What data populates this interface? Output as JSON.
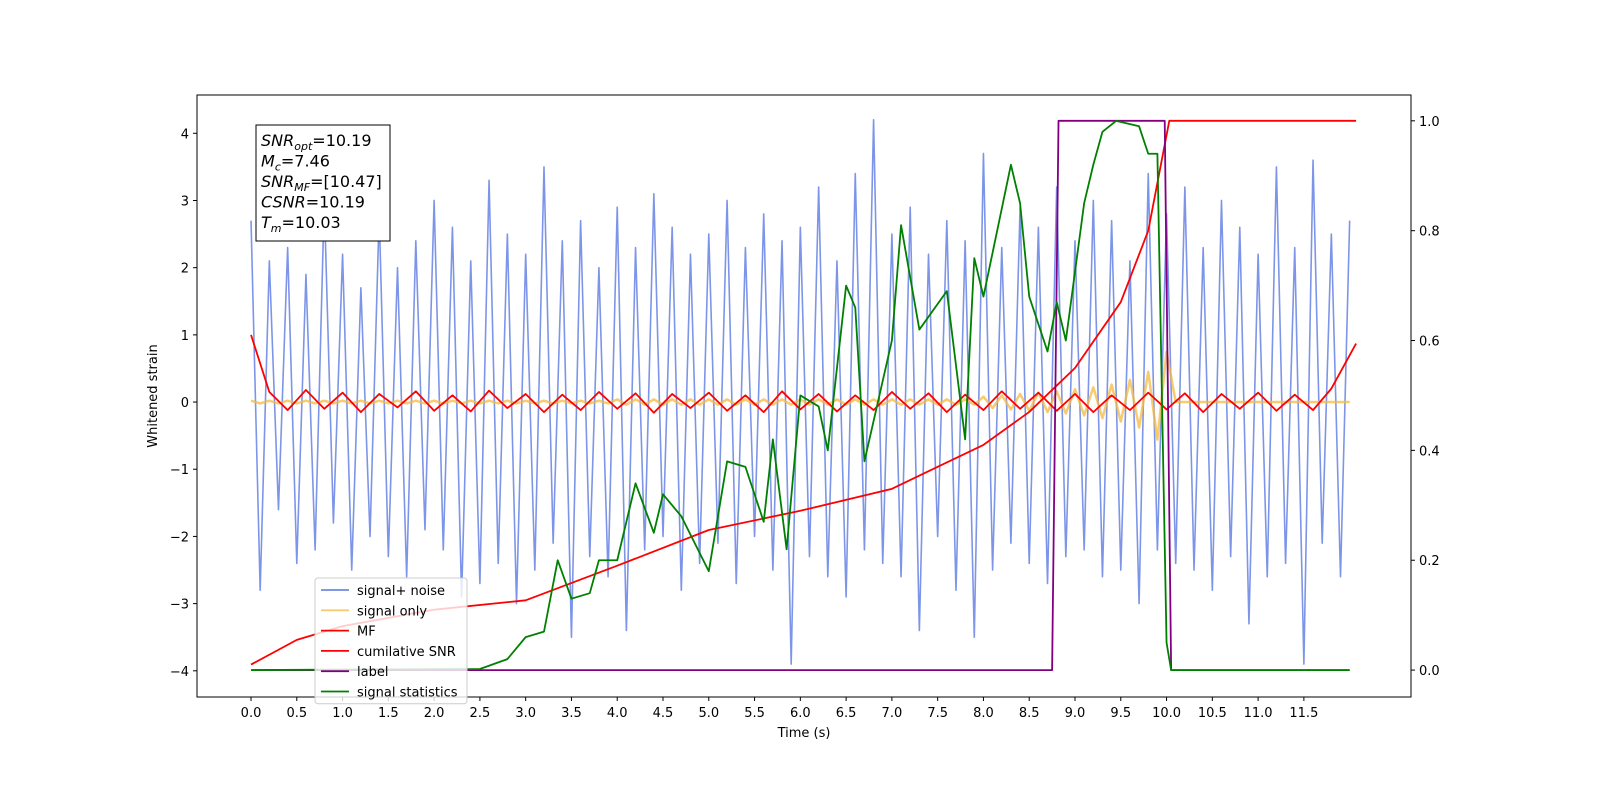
{
  "chart_data": {
    "type": "line",
    "xlabel": "Time (s)",
    "ylabel": "Whitened strain",
    "xlim": [
      -0.59,
      12.67
    ],
    "ylim": [
      -4.39,
      4.57
    ],
    "y2lim": [
      -0.049,
      1.047
    ],
    "xticks": [
      {
        "value": 0,
        "label": "0.0"
      },
      0.5,
      {
        "value": 1,
        "label": "1.0"
      },
      1.5,
      {
        "value": 2,
        "label": "2.0"
      },
      2.5,
      {
        "value": 3,
        "label": "3.0"
      },
      3.5,
      {
        "value": 4,
        "label": "4.0"
      },
      4.5,
      {
        "value": 5,
        "label": "5.0"
      },
      5.5,
      {
        "value": 6,
        "label": "6.0"
      },
      6.5,
      {
        "value": 7,
        "label": "7.0"
      },
      7.5,
      {
        "value": 8,
        "label": "8.0"
      },
      8.5,
      {
        "value": 9,
        "label": "9.0"
      },
      9.5,
      {
        "value": 10,
        "label": "10.0"
      },
      10.5,
      {
        "value": 11,
        "label": "11.0"
      },
      11.5
    ],
    "yticks": [
      {
        "value": -4,
        "label": "−4"
      },
      {
        "value": -3,
        "label": "−3"
      },
      {
        "value": -2,
        "label": "−2"
      },
      {
        "value": -1,
        "label": "−1"
      },
      0,
      1,
      2,
      3,
      4
    ],
    "y2ticks": [
      {
        "value": 0,
        "label": "0.0"
      },
      0.2,
      0.4,
      0.6,
      0.8,
      {
        "value": 1,
        "label": "1.0"
      }
    ],
    "grid": false,
    "legend": "lower left",
    "annotations": [
      {
        "symbol": "SNR",
        "subscript": "opt",
        "text": "=10.19"
      },
      {
        "symbol": "M",
        "subscript": "c",
        "text": "=7.46"
      },
      {
        "symbol": "SNR",
        "subscript": "MF",
        "text": "=[10.47]"
      },
      {
        "symbol": "CSNR",
        "subscript": "",
        "text": "=10.19"
      },
      {
        "symbol": "T",
        "subscript": "m",
        "text": "=10.03"
      }
    ],
    "x": [
      0,
      0.1,
      0.2,
      0.3,
      0.4,
      0.5,
      0.6,
      0.7,
      0.8,
      0.9,
      1,
      1.1,
      1.2,
      1.3,
      1.4,
      1.5,
      1.6,
      1.7,
      1.8,
      1.9,
      2,
      2.1,
      2.2,
      2.3,
      2.4,
      2.5,
      2.6,
      2.7,
      2.8,
      2.9,
      3,
      3.1,
      3.2,
      3.3,
      3.4,
      3.5,
      3.6,
      3.7,
      3.8,
      3.9,
      4,
      4.1,
      4.2,
      4.3,
      4.4,
      4.5,
      4.6,
      4.7,
      4.8,
      4.9,
      5,
      5.1,
      5.2,
      5.3,
      5.4,
      5.5,
      5.6,
      5.7,
      5.8,
      5.9,
      6,
      6.1,
      6.2,
      6.3,
      6.4,
      6.5,
      6.6,
      6.7,
      6.8,
      6.9,
      7,
      7.1,
      7.2,
      7.3,
      7.4,
      7.5,
      7.6,
      7.7,
      7.8,
      7.9,
      8,
      8.1,
      8.2,
      8.3,
      8.4,
      8.5,
      8.6,
      8.7,
      8.8,
      8.9,
      9,
      9.1,
      9.2,
      9.3,
      9.4,
      9.5,
      9.6,
      9.7,
      9.8,
      9.9,
      10,
      10.1,
      10.2,
      10.3,
      10.4,
      10.5,
      10.6,
      10.7,
      10.8,
      10.9,
      11,
      11.1,
      11.2,
      11.3,
      11.4,
      11.5,
      11.6,
      11.7,
      11.8,
      11.9,
      12
    ],
    "series": [
      {
        "name": "signal+ noise",
        "color": "#6f8ae6",
        "values": [
          2.7,
          -2.8,
          2.1,
          -1.6,
          2.3,
          -2.4,
          1.9,
          -2.2,
          3.0,
          -1.8,
          2.2,
          -2.5,
          1.7,
          -2.0,
          2.8,
          -2.3,
          2.0,
          -2.6,
          2.4,
          -1.9,
          3.0,
          -2.2,
          2.6,
          -2.9,
          2.1,
          -2.7,
          3.3,
          -2.4,
          2.5,
          -3.0,
          2.2,
          -2.5,
          3.5,
          -2.1,
          2.4,
          -3.5,
          2.7,
          -2.3,
          2.0,
          -2.6,
          2.9,
          -3.4,
          2.3,
          -2.2,
          3.1,
          -2.0,
          2.6,
          -2.8,
          2.2,
          -2.4,
          2.5,
          -2.1,
          3.0,
          -2.7,
          2.3,
          -2.0,
          2.8,
          -2.5,
          2.4,
          -3.9,
          2.6,
          -2.3,
          3.2,
          -2.6,
          2.1,
          -2.9,
          3.4,
          -2.2,
          4.2,
          -2.4,
          2.5,
          -2.6,
          2.9,
          -3.4,
          2.2,
          -2.0,
          2.7,
          -2.8,
          2.4,
          -3.5,
          3.7,
          -2.5,
          2.3,
          -2.1,
          2.9,
          -2.4,
          2.6,
          -2.7,
          3.2,
          -2.3,
          2.4,
          -2.2,
          3.0,
          -2.6,
          2.7,
          -2.5,
          2.1,
          -3.0,
          3.4,
          -2.2,
          2.8,
          -2.4,
          3.2,
          -2.5,
          2.3,
          -2.8,
          3.0,
          -2.3,
          2.6,
          -3.3,
          2.2,
          -2.6,
          3.5,
          -2.4,
          2.3,
          -3.9,
          3.6,
          -2.1,
          2.5,
          -2.6,
          2.7
        ]
      },
      {
        "name": "signal only",
        "color": "#f5b942",
        "values": [
          0.02,
          -0.02,
          0.02,
          -0.02,
          0.02,
          -0.02,
          0.02,
          -0.02,
          0.02,
          -0.02,
          0.02,
          -0.02,
          0.02,
          -0.02,
          0.02,
          -0.02,
          0.02,
          -0.02,
          0.02,
          -0.02,
          0.02,
          -0.02,
          0.02,
          -0.02,
          0.02,
          -0.02,
          0.02,
          -0.02,
          0.02,
          -0.02,
          0.02,
          -0.02,
          0.02,
          -0.02,
          0.02,
          -0.02,
          0.02,
          -0.02,
          0.02,
          -0.02,
          0.04,
          -0.04,
          0.04,
          -0.04,
          0.04,
          -0.04,
          0.04,
          -0.04,
          0.04,
          -0.04,
          0.04,
          -0.04,
          0.04,
          -0.04,
          0.04,
          -0.04,
          0.04,
          -0.04,
          0.04,
          -0.04,
          0.04,
          -0.04,
          0.04,
          -0.04,
          0.04,
          -0.04,
          0.04,
          -0.04,
          0.04,
          -0.04,
          0.04,
          -0.04,
          0.04,
          -0.04,
          0.04,
          -0.04,
          0.04,
          -0.04,
          0.04,
          -0.04,
          0.08,
          -0.09,
          0.1,
          -0.11,
          0.12,
          -0.13,
          0.14,
          -0.15,
          0.16,
          -0.17,
          0.19,
          -0.2,
          0.22,
          -0.24,
          0.26,
          -0.29,
          0.33,
          -0.38,
          0.45,
          -0.56,
          0.75,
          0,
          0,
          0,
          0,
          0,
          0,
          0,
          0,
          0,
          0,
          0,
          0,
          0,
          0,
          0,
          0,
          0,
          0,
          0,
          0
        ]
      },
      {
        "name": "MF",
        "color": "#ff0000",
        "x": [
          0,
          0.2,
          0.4,
          0.6,
          0.8,
          1,
          1.2,
          1.4,
          1.6,
          1.8,
          2,
          2.2,
          2.4,
          2.6,
          2.8,
          3,
          3.2,
          3.4,
          3.6,
          3.8,
          4,
          4.2,
          4.4,
          4.6,
          4.8,
          5,
          5.2,
          5.4,
          5.6,
          5.8,
          6,
          6.2,
          6.4,
          6.6,
          6.8,
          7,
          7.2,
          7.4,
          7.6,
          7.8,
          8,
          8.2,
          8.4,
          8.6,
          8.8,
          9,
          9.2,
          9.4,
          9.6,
          9.8,
          10,
          10.2,
          10.4,
          10.6,
          10.8,
          11,
          11.2,
          11.4,
          11.6,
          11.8,
          12.07
        ],
        "values": [
          1.0,
          0.15,
          -0.12,
          0.18,
          -0.1,
          0.14,
          -0.15,
          0.12,
          -0.08,
          0.16,
          -0.13,
          0.1,
          -0.14,
          0.17,
          -0.09,
          0.12,
          -0.15,
          0.11,
          -0.12,
          0.15,
          -0.1,
          0.13,
          -0.16,
          0.12,
          -0.09,
          0.14,
          -0.13,
          0.1,
          -0.15,
          0.16,
          -0.11,
          0.12,
          -0.14,
          0.1,
          -0.12,
          0.15,
          -0.1,
          0.13,
          -0.15,
          0.11,
          -0.12,
          0.16,
          -0.1,
          0.14,
          -0.13,
          0.12,
          -0.15,
          0.1,
          -0.12,
          0.14,
          -0.11,
          0.13,
          -0.15,
          0.12,
          -0.1,
          0.14,
          -0.13,
          0.11,
          -0.12,
          0.2,
          0.87
        ]
      },
      {
        "name": "cumilative SNR",
        "color": "#ff0000",
        "axis": "y2",
        "x": [
          0,
          0.5,
          1,
          2,
          3,
          4,
          5,
          6,
          7,
          7.5,
          8,
          8.5,
          9,
          9.5,
          9.8,
          10.03,
          12.07
        ],
        "values": [
          0.01,
          0.055,
          0.08,
          0.11,
          0.127,
          0.19,
          0.255,
          0.29,
          0.33,
          0.37,
          0.41,
          0.47,
          0.55,
          0.67,
          0.8,
          1.0,
          1.0
        ]
      },
      {
        "name": "label",
        "color": "#800080",
        "axis": "y2",
        "x": [
          0,
          8.75,
          8.82,
          9.98,
          10.05,
          12.0
        ],
        "values": [
          0,
          0,
          1,
          1,
          0,
          0
        ]
      },
      {
        "name": "signal statistics",
        "color": "#008000",
        "axis": "y2",
        "x": [
          0,
          2.5,
          2.8,
          3.0,
          3.2,
          3.35,
          3.5,
          3.7,
          3.8,
          4.0,
          4.2,
          4.4,
          4.5,
          4.7,
          5.0,
          5.2,
          5.4,
          5.6,
          5.7,
          5.85,
          6.0,
          6.2,
          6.3,
          6.5,
          6.6,
          6.7,
          7.0,
          7.1,
          7.3,
          7.6,
          7.8,
          7.9,
          8.0,
          8.1,
          8.3,
          8.4,
          8.5,
          8.7,
          8.8,
          8.9,
          9.1,
          9.2,
          9.3,
          9.45,
          9.7,
          9.8,
          9.9,
          10.0,
          10.05,
          12.0
        ],
        "values": [
          0,
          0.002,
          0.02,
          0.06,
          0.07,
          0.2,
          0.13,
          0.14,
          0.2,
          0.2,
          0.34,
          0.25,
          0.32,
          0.28,
          0.18,
          0.38,
          0.37,
          0.27,
          0.42,
          0.22,
          0.5,
          0.48,
          0.4,
          0.7,
          0.66,
          0.38,
          0.6,
          0.81,
          0.62,
          0.69,
          0.42,
          0.75,
          0.68,
          0.76,
          0.92,
          0.85,
          0.68,
          0.58,
          0.67,
          0.6,
          0.85,
          0.92,
          0.98,
          1.0,
          0.99,
          0.94,
          0.94,
          0.05,
          0,
          0
        ]
      }
    ]
  }
}
